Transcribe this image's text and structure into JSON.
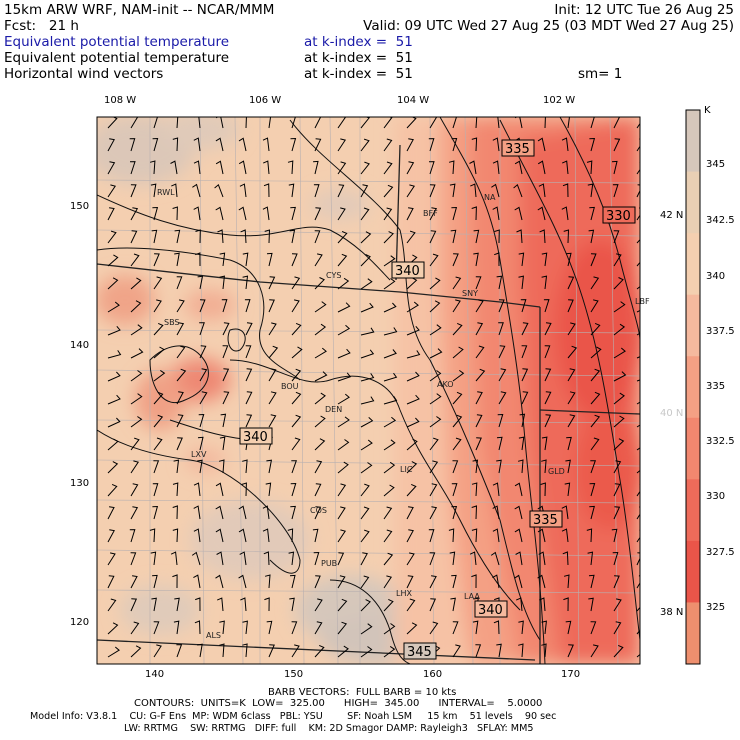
{
  "header": {
    "line1_left": "15km ARW WRF, NAM-init -- NCAR/MMM",
    "line1_right": "Init: 12 UTC Tue 26 Aug 25",
    "line2_left": "Fcst:   21 h",
    "line2_right": "Valid: 09 UTC Wed 27 Aug 25 (03 MDT Wed 27 Aug 25)",
    "fields": [
      {
        "name": "Equivalent potential temperature",
        "level": "at k-index =  51",
        "color": "#1a1aa8"
      },
      {
        "name": "Equivalent potential temperature",
        "level": "at k-index =  51",
        "color": "#000000"
      },
      {
        "name": "Horizontal wind vectors",
        "level": "at k-index =  51",
        "extra": "sm= 1",
        "color": "#000000"
      }
    ]
  },
  "axes": {
    "top_lon_labels": [
      "108 W",
      "106 W",
      "104 W",
      "102 W"
    ],
    "left_ticks": [
      "150",
      "140",
      "130",
      "120"
    ],
    "bottom_ticks": [
      "140",
      "150",
      "160",
      "170"
    ],
    "right_lat_labels": [
      "42 N",
      "40 N",
      "38 N"
    ]
  },
  "colorbar": {
    "unit": "K",
    "labels": [
      "345",
      "342.5",
      "340",
      "337.5",
      "335",
      "332.5",
      "330",
      "327.5",
      "325"
    ],
    "colors": [
      "#d6c7bb",
      "#e9cfb4",
      "#f4cfb0",
      "#f5b99e",
      "#f4a084",
      "#f2876f",
      "#ee6b5a",
      "#ea5549",
      "#ee8f6e"
    ]
  },
  "map": {
    "stations": [
      "RWL",
      "BFF",
      "NA",
      "CYS",
      "SNY",
      "LBF",
      "SBS",
      "BOU",
      "AKO",
      "DEN",
      "LXV",
      "LIC",
      "GLD",
      "COS",
      "PUB",
      "LHX",
      "LAA",
      "ALS"
    ],
    "contour_labels": [
      "335",
      "330",
      "340",
      "340",
      "335",
      "340",
      "345"
    ]
  },
  "footer": {
    "barb": "BARB VECTORS:  FULL BARB = 10 kts",
    "contours": "CONTOURS:  UNITS=K  LOW=  325.00      HIGH=  345.00      INTERVAL=    5.0000",
    "model1": "Model Info: V3.8.1    CU: G-F Ens  MP: WDM 6class   PBL: YSU        SF: Noah LSM     15 km    51 levels    90 sec",
    "model2": "LW: RRTMG    SW: RRTMG   DIFF: full    KM: 2D Smagor DAMP: Rayleigh3   SFLAY: MM5"
  }
}
